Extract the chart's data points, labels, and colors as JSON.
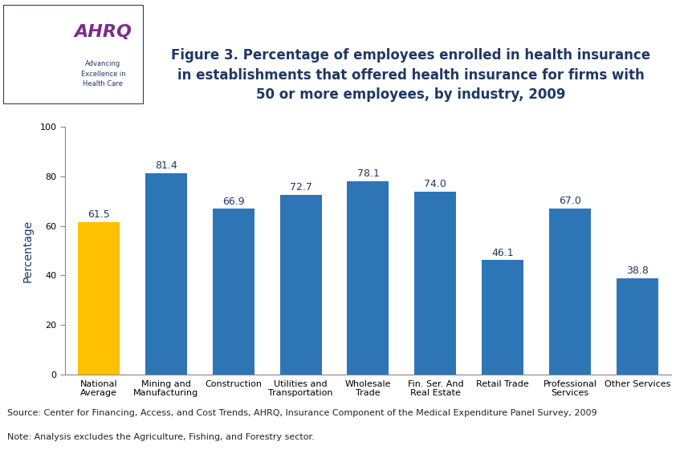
{
  "categories": [
    "National\nAverage",
    "Mining and\nManufacturing",
    "Construction",
    "Utilities and\nTransportation",
    "Wholesale\nTrade",
    "Fin. Ser. And\nReal Estate",
    "Retail Trade",
    "Professional\nServices",
    "Other Services"
  ],
  "values": [
    61.5,
    81.4,
    66.9,
    72.7,
    78.1,
    74.0,
    46.1,
    67.0,
    38.8
  ],
  "bar_colors": [
    "#FFC000",
    "#2E75B6",
    "#2E75B6",
    "#2E75B6",
    "#2E75B6",
    "#2E75B6",
    "#2E75B6",
    "#2E75B6",
    "#2E75B6"
  ],
  "title_line1": "Figure 3. Percentage of employees enrolled in health insurance",
  "title_line2": "in establishments that offered health insurance for firms with",
  "title_line3": "50 or more employees, by industry, 2009",
  "ylabel": "Percentage",
  "ylim": [
    0,
    100
  ],
  "yticks": [
    0,
    20,
    40,
    60,
    80,
    100
  ],
  "title_color": "#1F3864",
  "title_fontsize": 12,
  "bar_label_color": "#1F3864",
  "bar_label_fontsize": 9,
  "ylabel_color": "#1F3864",
  "ylabel_fontsize": 10,
  "source_text": "Source: Center for Financing, Access, and Cost Trends, AHRQ, Insurance Component of the Medical Expenditure Panel Survey, 2009",
  "note_text": "Note: Analysis excludes the Agriculture, Fishing, and Forestry sector.",
  "source_fontsize": 8,
  "background_color": "#FFFFFF",
  "separator_color": "#1A11CC",
  "tick_label_fontsize": 8,
  "tick_label_color": "#000000",
  "logo_blue_bg": "#1E90C8",
  "logo_white_bg": "#FFFFFF",
  "logo_border_color": "#1F3864",
  "ahrq_text_color": "#7B2D8B",
  "ahrq_subtext_color": "#1F3864"
}
